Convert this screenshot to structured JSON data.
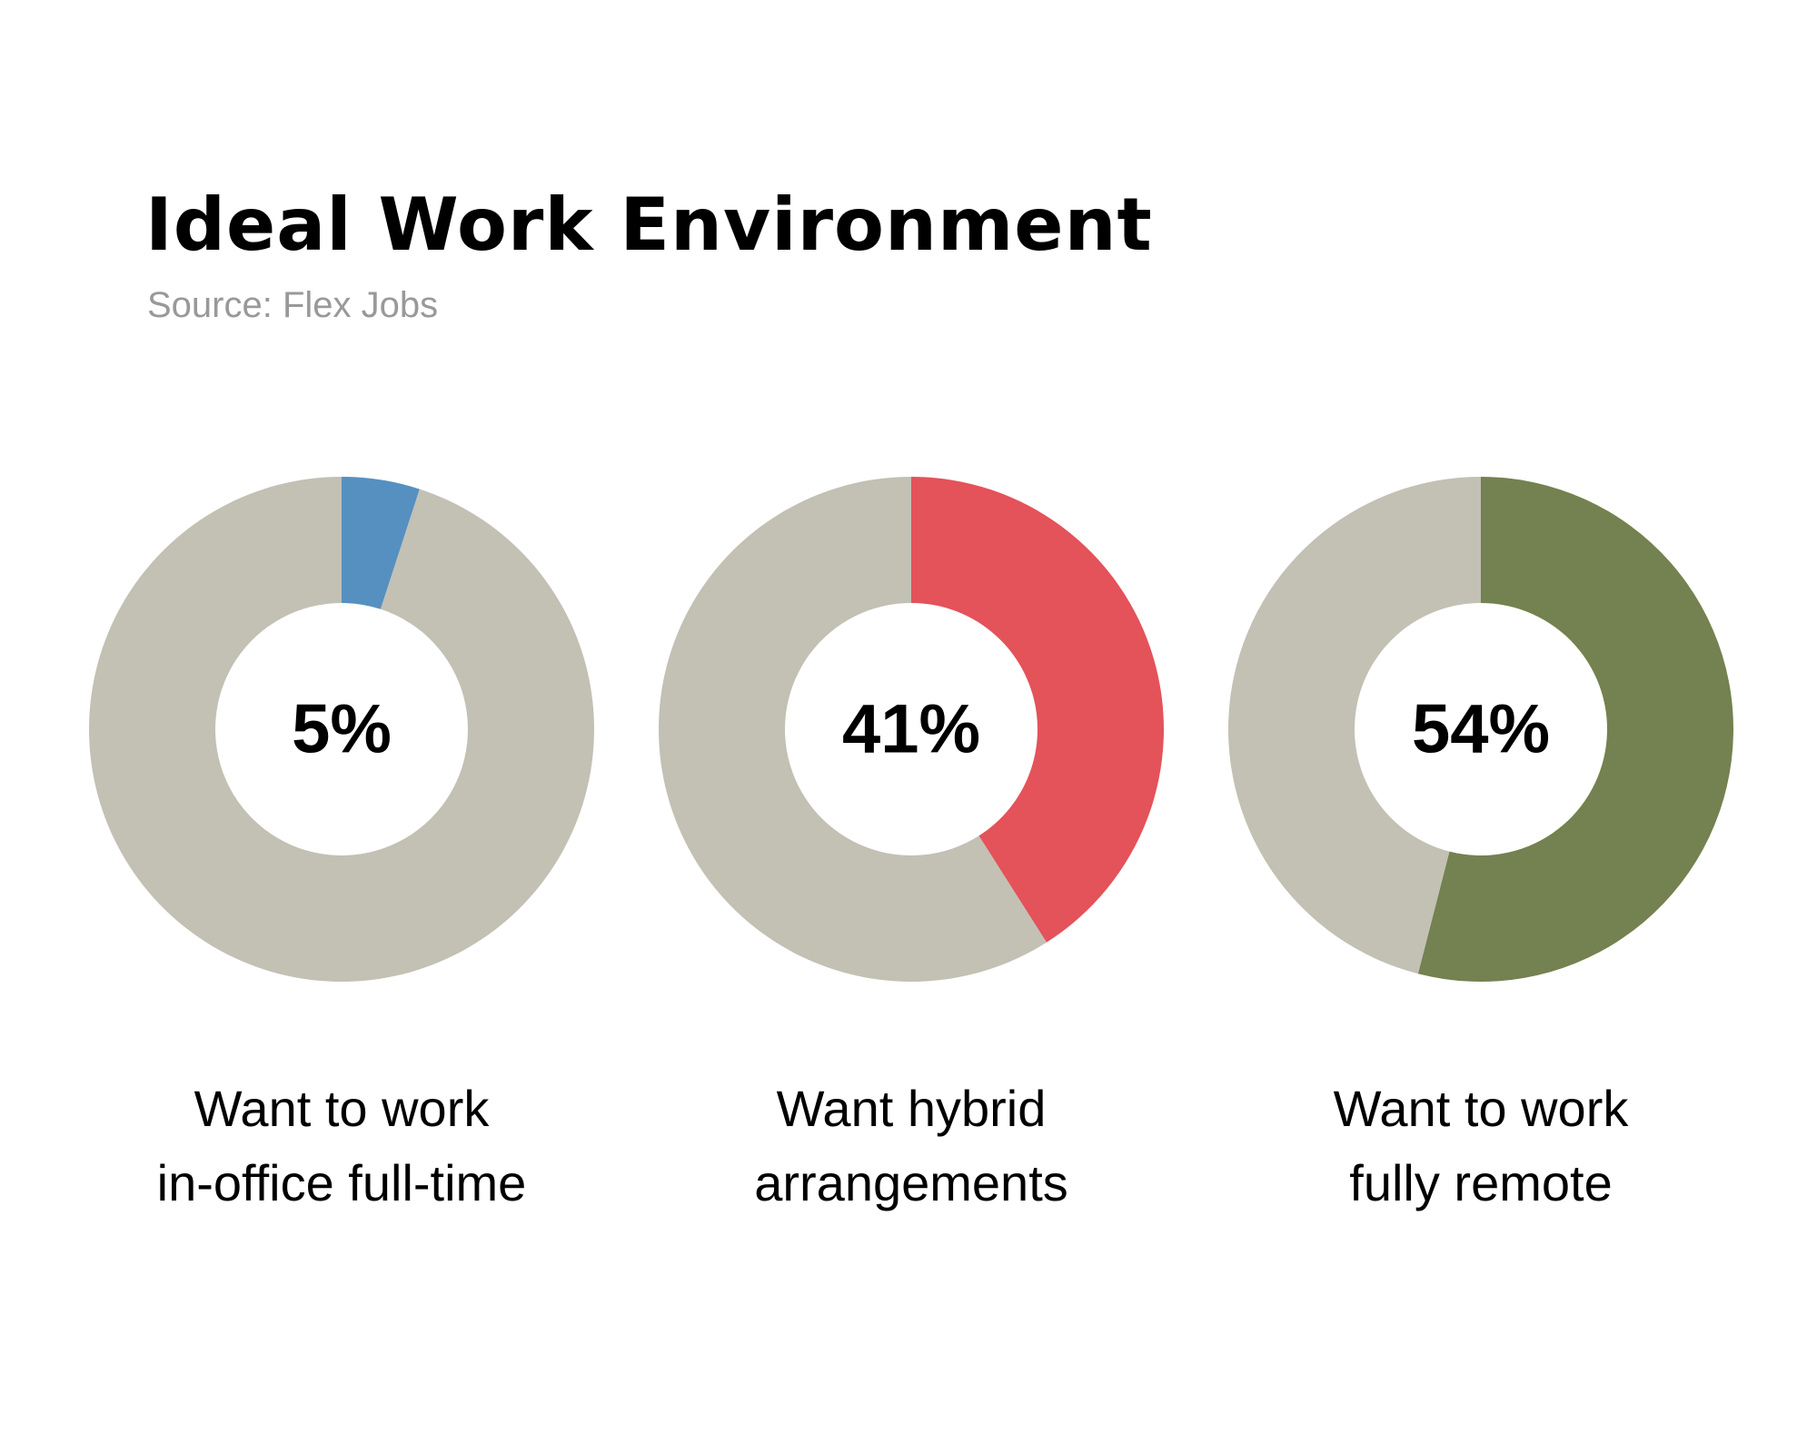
{
  "title": "Ideal Work Environment",
  "subtitle": "Source: Flex Jobs",
  "chart_data": [
    {
      "type": "pie",
      "values": [
        5,
        95
      ],
      "colors": [
        "#5690c0",
        "#c3c0b4"
      ],
      "center_label": "5%",
      "caption_lines": [
        "Want to work",
        "in-office full-time"
      ]
    },
    {
      "type": "pie",
      "values": [
        41,
        59
      ],
      "colors": [
        "#e4525a",
        "#c3c0b4"
      ],
      "center_label": "41%",
      "caption_lines": [
        "Want hybrid",
        "arrangements"
      ]
    },
    {
      "type": "pie",
      "values": [
        54,
        46
      ],
      "colors": [
        "#748150",
        "#c3c0b4"
      ],
      "center_label": "54%",
      "caption_lines": [
        "Want to work",
        "fully remote"
      ]
    }
  ]
}
